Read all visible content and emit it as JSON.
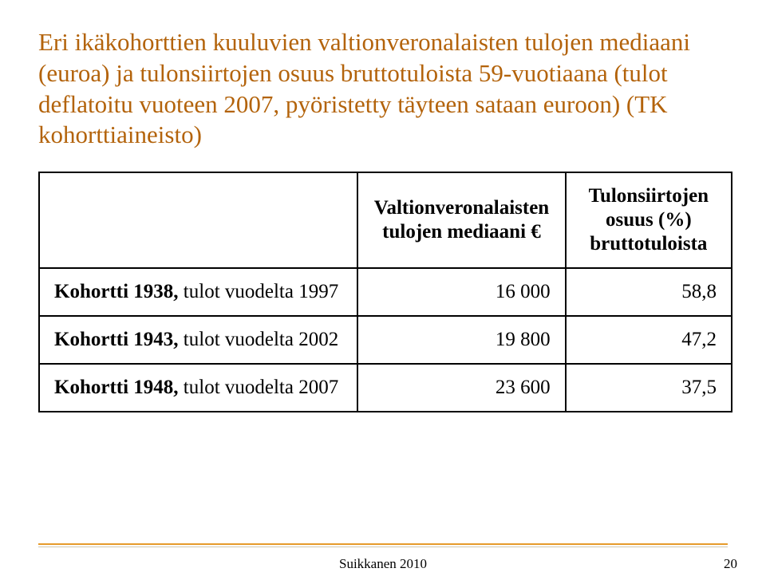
{
  "colors": {
    "title": "#b3630b",
    "rule1": "#e69b2b",
    "rule2": "#d0c8b0"
  },
  "title": "Eri ikäkohorttien kuuluvien valtionveronalaisten tulojen mediaani (euroa) ja tulonsiirtojen osuus bruttotuloista 59-vuotiaana (tulot deflatoitu vuoteen 2007, pyöristetty täyteen sataan euroon) (TK kohorttiaineisto)",
  "table": {
    "headers": {
      "col1": "Valtionveronalaisten tulojen mediaani €",
      "col2": "Tulonsiirtojen osuus (%) bruttotuloista"
    },
    "rows": [
      {
        "label_bold": "Kohortti 1938,",
        "label_rest": " tulot vuodelta 1997",
        "median": "16 000",
        "share": "58,8"
      },
      {
        "label_bold": "Kohortti 1943,",
        "label_rest": " tulot vuodelta 2002",
        "median": "19 800",
        "share": "47,2"
      },
      {
        "label_bold": "Kohortti 1948,",
        "label_rest": " tulot vuodelta 2007",
        "median": "23 600",
        "share": "37,5"
      }
    ]
  },
  "footer": "Suikkanen 2010",
  "page": "20"
}
